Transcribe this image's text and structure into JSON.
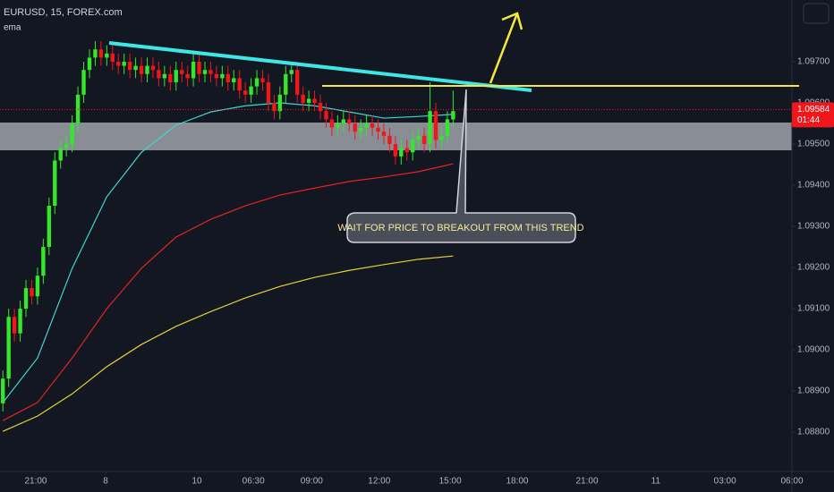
{
  "chart_data": {
    "type": "candlestick",
    "title": "EURUSD, 15, FOREX.com",
    "indicator": "ema",
    "annotation": "WAIT FOR PRICE TO BREAKOUT FROM THIS TREND",
    "up_color": "#35e62c",
    "down_color": "#f0161a",
    "open": [
      1.0887,
      1.0893,
      1.0908,
      1.0904,
      1.091,
      1.0915,
      1.0913,
      1.0918,
      1.0925,
      1.0935,
      1.0946,
      1.0949,
      1.095,
      1.0955,
      1.0962,
      1.0968,
      1.0971,
      1.0973,
      1.0971,
      1.0972,
      1.097,
      1.0969,
      1.097,
      1.0968,
      1.0969,
      1.0967,
      1.0969,
      1.0968,
      1.0966,
      1.0967,
      1.0965,
      1.0968,
      1.0967,
      1.0966,
      1.097,
      1.0967,
      1.0968,
      1.0967,
      1.0966,
      1.0967,
      1.0965,
      1.0966,
      1.0963,
      1.0962,
      1.0964,
      1.0966,
      1.0965,
      1.096,
      1.0958,
      1.0962,
      1.0967,
      1.0968,
      1.0962,
      1.096,
      1.0961,
      1.096,
      1.0958,
      1.0956,
      1.0954,
      1.0955,
      1.0956,
      1.0955,
      1.0953,
      1.0954,
      1.0955,
      1.0954,
      1.0953,
      1.0952,
      1.095,
      1.0947,
      1.0949,
      1.0948,
      1.0951,
      1.0952,
      1.095,
      1.0958,
      1.0951,
      1.0952,
      1.0956
    ],
    "high": [
      1.0895,
      1.091,
      1.091,
      1.0912,
      1.0917,
      1.0917,
      1.092,
      1.0927,
      1.0937,
      1.0948,
      1.0951,
      1.0952,
      1.0957,
      1.0964,
      1.097,
      1.0973,
      1.0975,
      1.0975,
      1.0974,
      1.0974,
      1.0972,
      1.0972,
      1.0972,
      1.0971,
      1.0971,
      1.0971,
      1.0971,
      1.097,
      1.0969,
      1.0969,
      1.097,
      1.097,
      1.0969,
      1.0972,
      1.0972,
      1.097,
      1.097,
      1.0969,
      1.0969,
      1.0969,
      1.0968,
      1.0968,
      1.0965,
      1.0966,
      1.0968,
      1.0968,
      1.0967,
      1.0962,
      1.0964,
      1.0969,
      1.097,
      1.097,
      1.0964,
      1.0963,
      1.0963,
      1.0962,
      1.096,
      1.0958,
      1.0957,
      1.0958,
      1.0958,
      1.0957,
      1.0956,
      1.0957,
      1.0957,
      1.0956,
      1.0955,
      1.0954,
      1.0952,
      1.0951,
      1.0951,
      1.0953,
      1.0954,
      1.0954,
      1.0965,
      1.096,
      1.0954,
      1.0958,
      1.0963
    ],
    "low": [
      1.0885,
      1.0891,
      1.0902,
      1.0902,
      1.0908,
      1.0911,
      1.0911,
      1.0916,
      1.0923,
      1.0933,
      1.0944,
      1.0947,
      1.0948,
      1.0953,
      1.096,
      1.0966,
      1.0969,
      1.0969,
      1.0969,
      1.0968,
      1.0967,
      1.0967,
      1.0966,
      1.0966,
      1.0965,
      1.0965,
      1.0966,
      1.0964,
      1.0964,
      1.0963,
      1.0963,
      1.0965,
      1.0964,
      1.0964,
      1.0965,
      1.0965,
      1.0965,
      1.0964,
      1.0964,
      1.0963,
      1.0963,
      1.0961,
      1.096,
      1.096,
      1.0962,
      1.0963,
      1.0958,
      1.0956,
      1.0956,
      1.096,
      1.0965,
      1.096,
      1.0958,
      1.0958,
      1.0958,
      1.0956,
      1.0954,
      1.0952,
      1.0952,
      1.0953,
      1.0953,
      1.0951,
      1.0951,
      1.0952,
      1.0952,
      1.0951,
      1.095,
      1.0948,
      1.0945,
      1.0945,
      1.0946,
      1.0946,
      1.0949,
      1.0948,
      1.0948,
      1.0949,
      1.0949,
      1.095,
      1.0954
    ],
    "close": [
      1.0893,
      1.0908,
      1.0904,
      1.091,
      1.0915,
      1.0913,
      1.0918,
      1.0925,
      1.0935,
      1.0946,
      1.0949,
      1.095,
      1.0955,
      1.0962,
      1.0968,
      1.0971,
      1.0973,
      1.0971,
      1.0972,
      1.097,
      1.0969,
      1.097,
      1.0968,
      1.0969,
      1.0967,
      1.0969,
      1.0968,
      1.0966,
      1.0967,
      1.0965,
      1.0968,
      1.0967,
      1.0966,
      1.097,
      1.0967,
      1.0968,
      1.0967,
      1.0966,
      1.0967,
      1.0965,
      1.0966,
      1.0963,
      1.0962,
      1.0964,
      1.0966,
      1.0965,
      1.096,
      1.0958,
      1.0962,
      1.0967,
      1.0968,
      1.0962,
      1.096,
      1.0961,
      1.096,
      1.0958,
      1.0956,
      1.0954,
      1.0955,
      1.0956,
      1.0955,
      1.0953,
      1.0954,
      1.0955,
      1.0954,
      1.0953,
      1.0952,
      1.095,
      1.0947,
      1.0949,
      1.0948,
      1.0951,
      1.0952,
      1.095,
      1.0958,
      1.0951,
      1.0952,
      1.0956,
      1.0958
    ],
    "ema": [
      {
        "color": "#3fd6d0",
        "x": [
          0,
          6,
          12,
          18,
          24,
          30,
          36,
          42,
          48,
          54,
          60,
          66,
          72,
          78
        ],
        "values": [
          1.08872,
          1.0898,
          1.09198,
          1.09372,
          1.0948,
          1.09546,
          1.09578,
          1.09593,
          1.096,
          1.09593,
          1.09578,
          1.09563,
          1.09567,
          1.09572
        ]
      },
      {
        "color": "#e3222a",
        "x": [
          0,
          6,
          12,
          18,
          24,
          30,
          36,
          42,
          48,
          54,
          60,
          66,
          72,
          78
        ],
        "values": [
          1.08828,
          1.08872,
          1.0898,
          1.091,
          1.09198,
          1.09274,
          1.09317,
          1.0935,
          1.09376,
          1.09393,
          1.09409,
          1.0942,
          1.09433,
          1.09452
        ]
      },
      {
        "color": "#e4d23a",
        "x": [
          0,
          6,
          12,
          18,
          24,
          30,
          36,
          42,
          48,
          54,
          60,
          66,
          72,
          78
        ],
        "values": [
          1.08802,
          1.08839,
          1.08893,
          1.08959,
          1.09013,
          1.09057,
          1.09093,
          1.09126,
          1.09154,
          1.09176,
          1.09193,
          1.09207,
          1.0922,
          1.09228
        ]
      }
    ],
    "last_price": {
      "value": 1.09584,
      "label": "1.09584"
    },
    "countdown": "01:44",
    "xlim": [
      -0.5,
      136.7
    ],
    "xticks": [
      {
        "value": 5.7,
        "label": "21:00"
      },
      {
        "value": 17.8,
        "label": "8"
      },
      {
        "value": 33.6,
        "label": "10"
      },
      {
        "value": 43.4,
        "label": "06:30"
      },
      {
        "value": 53.5,
        "label": "09:00"
      },
      {
        "value": 65.2,
        "label": "12:00"
      },
      {
        "value": 77.5,
        "label": "15:00"
      },
      {
        "value": 89.1,
        "label": "18:00"
      },
      {
        "value": 101.2,
        "label": "21:00"
      },
      {
        "value": 113.1,
        "label": "11"
      },
      {
        "value": 125.1,
        "label": "03:00"
      },
      {
        "value": 136.7,
        "label": "06:00"
      }
    ],
    "ylim": [
      1.08698,
      1.0985
    ],
    "yticks": [
      {
        "value": 1.097,
        "label": "1.09700"
      },
      {
        "value": 1.096,
        "label": "1.09600"
      },
      {
        "value": 1.095,
        "label": "1.09500"
      },
      {
        "value": 1.094,
        "label": "1.09400"
      },
      {
        "value": 1.093,
        "label": "1.09300"
      },
      {
        "value": 1.092,
        "label": "1.09200"
      },
      {
        "value": 1.091,
        "label": "1.09100"
      },
      {
        "value": 1.09,
        "label": "1.09000"
      },
      {
        "value": 1.089,
        "label": "1.08900"
      },
      {
        "value": 1.088,
        "label": "1.08800"
      }
    ]
  }
}
